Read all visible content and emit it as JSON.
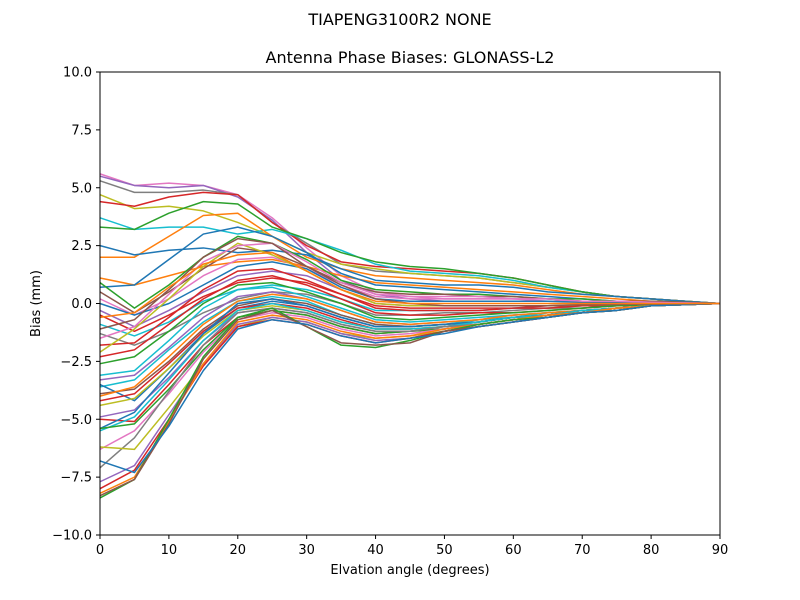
{
  "chart_data": {
    "type": "line",
    "suptitle": "TIAPENG3100R2   NONE",
    "title": "Antenna Phase Biases: GLONASS-L2",
    "xlabel": "Elvation angle (degrees)",
    "ylabel": "Bias (mm)",
    "xlim": [
      0,
      90
    ],
    "ylim": [
      -10,
      10
    ],
    "xticks": [
      0,
      10,
      20,
      30,
      40,
      50,
      60,
      70,
      80,
      90
    ],
    "yticks": [
      -10.0,
      -7.5,
      -5.0,
      -2.5,
      0.0,
      2.5,
      5.0,
      7.5,
      10.0
    ],
    "xtick_labels": [
      "0",
      "10",
      "20",
      "30",
      "40",
      "50",
      "60",
      "70",
      "80",
      "90"
    ],
    "ytick_labels": [
      "−10.0",
      "−7.5",
      "−5.0",
      "−2.5",
      "0.0",
      "2.5",
      "5.0",
      "7.5",
      "10.0"
    ],
    "grid": false,
    "legend": "none",
    "x": [
      0,
      5,
      10,
      15,
      20,
      25,
      30,
      35,
      40,
      45,
      50,
      55,
      60,
      65,
      70,
      75,
      80,
      85,
      90
    ],
    "series": [
      {
        "color": "#e377c2",
        "values": [
          5.6,
          5.1,
          5.2,
          5.1,
          4.7,
          3.7,
          2.4,
          1.2,
          0.5,
          0.3,
          0.2,
          0.2,
          0.2,
          0.2,
          0.1,
          0.1,
          0.1,
          0.05,
          0.0
        ]
      },
      {
        "color": "#9467bd",
        "values": [
          5.5,
          5.1,
          5.0,
          5.1,
          4.6,
          3.6,
          2.2,
          1.0,
          0.4,
          0.2,
          0.1,
          0.1,
          0.1,
          0.1,
          0.1,
          0.1,
          0.05,
          0.02,
          0.0
        ]
      },
      {
        "color": "#7f7f7f",
        "values": [
          5.3,
          4.8,
          4.8,
          4.9,
          4.7,
          3.5,
          2.6,
          1.7,
          1.4,
          1.3,
          1.2,
          1.1,
          0.9,
          0.7,
          0.5,
          0.3,
          0.2,
          0.1,
          0.0
        ]
      },
      {
        "color": "#bcbd22",
        "values": [
          4.7,
          4.1,
          4.2,
          4.0,
          3.5,
          2.9,
          2.2,
          1.7,
          1.5,
          1.3,
          1.2,
          1.1,
          0.9,
          0.7,
          0.5,
          0.3,
          0.2,
          0.1,
          0.0
        ]
      },
      {
        "color": "#d62728",
        "values": [
          4.4,
          4.2,
          4.6,
          4.8,
          4.7,
          3.5,
          2.5,
          1.8,
          1.6,
          1.5,
          1.4,
          1.3,
          1.1,
          0.8,
          0.5,
          0.3,
          0.2,
          0.1,
          0.0
        ]
      },
      {
        "color": "#17becf",
        "values": [
          3.7,
          3.2,
          3.3,
          3.3,
          3.0,
          3.2,
          2.8,
          2.3,
          1.7,
          1.4,
          1.3,
          1.2,
          1.0,
          0.7,
          0.5,
          0.3,
          0.2,
          0.1,
          0.0
        ]
      },
      {
        "color": "#2ca02c",
        "values": [
          3.3,
          3.2,
          3.9,
          4.4,
          4.3,
          3.3,
          2.8,
          2.2,
          1.8,
          1.6,
          1.5,
          1.3,
          1.1,
          0.8,
          0.5,
          0.3,
          0.2,
          0.1,
          0.0
        ]
      },
      {
        "color": "#ff7f0e",
        "values": [
          2.0,
          2.0,
          2.9,
          3.8,
          3.9,
          2.9,
          2.0,
          1.5,
          1.2,
          1.1,
          1.0,
          0.9,
          0.8,
          0.6,
          0.4,
          0.3,
          0.2,
          0.1,
          0.0
        ]
      },
      {
        "color": "#1f77b4",
        "values": [
          2.5,
          2.1,
          2.3,
          2.4,
          2.2,
          2.3,
          2.1,
          1.5,
          1.0,
          0.9,
          0.8,
          0.8,
          0.7,
          0.5,
          0.4,
          0.3,
          0.2,
          0.1,
          0.0
        ]
      },
      {
        "color": "#ff7f0e",
        "values": [
          1.1,
          0.8,
          1.2,
          1.6,
          1.8,
          1.9,
          1.6,
          1.2,
          0.9,
          0.8,
          0.7,
          0.6,
          0.5,
          0.4,
          0.3,
          0.2,
          0.1,
          0.05,
          0.0
        ]
      },
      {
        "color": "#1f77b4",
        "values": [
          0.7,
          0.8,
          1.9,
          3.0,
          3.3,
          2.9,
          2.2,
          1.3,
          0.8,
          0.7,
          0.6,
          0.5,
          0.4,
          0.3,
          0.2,
          0.1,
          0.1,
          0.05,
          0.0
        ]
      },
      {
        "color": "#2ca02c",
        "values": [
          0.9,
          -0.2,
          0.8,
          2.0,
          2.9,
          2.6,
          1.9,
          1.0,
          0.6,
          0.5,
          0.4,
          0.4,
          0.3,
          0.2,
          0.2,
          0.1,
          0.1,
          0.05,
          0.0
        ]
      },
      {
        "color": "#8c564b",
        "values": [
          0.5,
          -0.4,
          0.5,
          1.5,
          2.4,
          2.2,
          1.6,
          0.9,
          0.5,
          0.4,
          0.4,
          0.3,
          0.3,
          0.2,
          0.1,
          0.1,
          0.1,
          0.05,
          0.0
        ]
      },
      {
        "color": "#e377c2",
        "values": [
          0.2,
          -0.5,
          0.2,
          1.2,
          1.9,
          2.0,
          1.5,
          0.8,
          0.3,
          0.2,
          0.2,
          0.2,
          0.2,
          0.1,
          0.1,
          0.1,
          0.05,
          0.02,
          0.0
        ]
      },
      {
        "color": "#1f77b4",
        "values": [
          0.0,
          -0.5,
          0.0,
          0.8,
          1.6,
          1.8,
          1.5,
          0.7,
          0.2,
          0.1,
          0.1,
          0.1,
          0.1,
          0.1,
          0.05,
          0.05,
          0.02,
          0.01,
          0.0
        ]
      },
      {
        "color": "#9467bd",
        "values": [
          -0.3,
          -1.0,
          -0.3,
          0.5,
          1.2,
          1.4,
          1.2,
          0.6,
          0.0,
          -0.1,
          -0.1,
          -0.1,
          -0.1,
          -0.1,
          -0.05,
          -0.05,
          -0.02,
          -0.01,
          0.0
        ]
      },
      {
        "color": "#d62728",
        "values": [
          -0.5,
          -1.2,
          -0.5,
          0.3,
          0.9,
          1.1,
          0.9,
          0.4,
          -0.1,
          -0.2,
          -0.2,
          -0.2,
          -0.2,
          -0.1,
          -0.1,
          -0.05,
          -0.02,
          -0.01,
          0.0
        ]
      },
      {
        "color": "#17becf",
        "values": [
          -0.9,
          -1.4,
          -0.8,
          0.1,
          0.6,
          0.8,
          0.6,
          0.2,
          -0.3,
          -0.3,
          -0.3,
          -0.3,
          -0.2,
          -0.2,
          -0.1,
          -0.1,
          -0.05,
          -0.02,
          0.0
        ]
      },
      {
        "color": "#7f7f7f",
        "values": [
          -1.3,
          -1.8,
          -1.2,
          -0.4,
          0.2,
          0.5,
          0.4,
          0.0,
          -0.5,
          -0.5,
          -0.4,
          -0.4,
          -0.3,
          -0.2,
          -0.2,
          -0.1,
          -0.05,
          -0.02,
          0.0
        ]
      },
      {
        "color": "#d62728",
        "values": [
          -1.8,
          -1.7,
          -0.6,
          0.6,
          1.4,
          1.5,
          1.0,
          0.4,
          -0.2,
          -0.3,
          -0.3,
          -0.3,
          -0.2,
          -0.2,
          -0.1,
          -0.1,
          -0.05,
          -0.02,
          0.0
        ]
      },
      {
        "color": "#bcbd22",
        "values": [
          -2.1,
          -1.1,
          0.2,
          1.6,
          2.6,
          2.1,
          1.4,
          0.6,
          0.0,
          -0.1,
          -0.1,
          -0.1,
          -0.1,
          -0.1,
          -0.05,
          -0.05,
          -0.02,
          -0.01,
          0.0
        ]
      },
      {
        "color": "#d62728",
        "values": [
          -2.3,
          -2.0,
          -0.9,
          0.2,
          1.0,
          1.2,
          0.8,
          0.2,
          -0.4,
          -0.5,
          -0.5,
          -0.4,
          -0.4,
          -0.3,
          -0.2,
          -0.1,
          -0.05,
          -0.02,
          0.0
        ]
      },
      {
        "color": "#2ca02c",
        "values": [
          -2.6,
          -2.3,
          -1.2,
          0.0,
          0.8,
          0.9,
          0.5,
          0.0,
          -0.6,
          -0.7,
          -0.6,
          -0.5,
          -0.4,
          -0.3,
          -0.2,
          -0.1,
          -0.05,
          -0.02,
          0.0
        ]
      },
      {
        "color": "#17becf",
        "values": [
          -3.1,
          -2.9,
          -1.6,
          -0.2,
          0.6,
          0.7,
          0.3,
          -0.2,
          -0.7,
          -0.8,
          -0.7,
          -0.6,
          -0.5,
          -0.4,
          -0.3,
          -0.2,
          -0.1,
          -0.05,
          0.0
        ]
      },
      {
        "color": "#9467bd",
        "values": [
          -3.3,
          -3.1,
          -1.9,
          -0.6,
          0.3,
          0.5,
          0.2,
          -0.3,
          -0.8,
          -0.9,
          -0.8,
          -0.7,
          -0.5,
          -0.4,
          -0.3,
          -0.2,
          -0.1,
          -0.05,
          0.0
        ]
      },
      {
        "color": "#17becf",
        "values": [
          -3.6,
          -3.3,
          -2.0,
          -0.8,
          0.1,
          0.3,
          0.1,
          -0.5,
          -0.9,
          -1.0,
          -0.9,
          -0.7,
          -0.6,
          -0.4,
          -0.3,
          -0.2,
          -0.1,
          -0.05,
          0.0
        ]
      },
      {
        "color": "#1f77b4",
        "values": [
          -3.5,
          -4.2,
          -2.8,
          -1.3,
          -0.2,
          0.1,
          -0.1,
          -0.6,
          -1.0,
          -1.0,
          -0.9,
          -0.8,
          -0.6,
          -0.5,
          -0.3,
          -0.2,
          -0.1,
          -0.05,
          0.0
        ]
      },
      {
        "color": "#8c564b",
        "values": [
          -3.9,
          -3.7,
          -2.5,
          -1.1,
          -0.1,
          0.2,
          0.0,
          -0.5,
          -0.9,
          -1.0,
          -0.9,
          -0.8,
          -0.6,
          -0.5,
          -0.3,
          -0.2,
          -0.1,
          -0.05,
          0.0
        ]
      },
      {
        "color": "#ff7f0e",
        "values": [
          -4.0,
          -3.6,
          -2.3,
          -0.9,
          0.1,
          0.4,
          0.2,
          -0.3,
          -0.8,
          -0.9,
          -0.8,
          -0.7,
          -0.5,
          -0.4,
          -0.3,
          -0.2,
          -0.1,
          -0.05,
          0.0
        ]
      },
      {
        "color": "#d62728",
        "values": [
          -4.2,
          -3.9,
          -2.6,
          -1.2,
          -0.2,
          0.0,
          -0.2,
          -0.7,
          -1.1,
          -1.1,
          -1.0,
          -0.8,
          -0.6,
          -0.5,
          -0.3,
          -0.2,
          -0.1,
          -0.05,
          0.0
        ]
      },
      {
        "color": "#bcbd22",
        "values": [
          -4.4,
          -4.1,
          -2.8,
          -1.4,
          -0.3,
          -0.1,
          -0.3,
          -0.8,
          -1.1,
          -1.1,
          -1.0,
          -0.9,
          -0.7,
          -0.5,
          -0.4,
          -0.2,
          -0.1,
          -0.05,
          0.0
        ]
      },
      {
        "color": "#9467bd",
        "values": [
          -4.9,
          -4.6,
          -3.2,
          -1.6,
          -0.4,
          -0.2,
          -0.4,
          -0.9,
          -1.2,
          -1.2,
          -1.0,
          -0.9,
          -0.7,
          -0.5,
          -0.4,
          -0.2,
          -0.1,
          -0.05,
          0.0
        ]
      },
      {
        "color": "#d62728",
        "values": [
          -5.0,
          -5.1,
          -3.5,
          -1.8,
          -0.6,
          -0.3,
          -0.5,
          -1.0,
          -1.3,
          -1.2,
          -1.1,
          -0.9,
          -0.7,
          -0.5,
          -0.4,
          -0.2,
          -0.1,
          -0.05,
          0.0
        ]
      },
      {
        "color": "#1f77b4",
        "values": [
          -5.4,
          -4.7,
          -3.0,
          -1.3,
          0.0,
          0.2,
          -0.1,
          -0.6,
          -1.0,
          -1.0,
          -0.9,
          -0.8,
          -0.6,
          -0.5,
          -0.3,
          -0.2,
          -0.1,
          -0.05,
          0.0
        ]
      },
      {
        "color": "#17becf",
        "values": [
          -5.5,
          -4.9,
          -3.3,
          -1.6,
          -0.3,
          0.0,
          -0.3,
          -0.8,
          -1.1,
          -1.1,
          -1.0,
          -0.8,
          -0.6,
          -0.5,
          -0.3,
          -0.2,
          -0.1,
          -0.05,
          0.0
        ]
      },
      {
        "color": "#2ca02c",
        "values": [
          -5.4,
          -5.2,
          -3.7,
          -2.0,
          -0.6,
          -0.3,
          -0.5,
          -1.0,
          -1.3,
          -1.2,
          -1.1,
          -0.9,
          -0.7,
          -0.5,
          -0.4,
          -0.2,
          -0.1,
          -0.05,
          0.0
        ]
      },
      {
        "color": "#e377c2",
        "values": [
          -6.3,
          -5.5,
          -3.9,
          -2.1,
          -0.7,
          -0.4,
          -0.6,
          -1.1,
          -1.4,
          -1.3,
          -1.1,
          -0.9,
          -0.7,
          -0.6,
          -0.4,
          -0.2,
          -0.1,
          -0.05,
          0.0
        ]
      },
      {
        "color": "#7f7f7f",
        "values": [
          -7.1,
          -5.8,
          -3.8,
          -1.8,
          -0.4,
          -0.2,
          -0.4,
          -0.9,
          -1.2,
          -1.2,
          -1.0,
          -0.9,
          -0.7,
          -0.5,
          -0.4,
          -0.2,
          -0.1,
          -0.05,
          0.0
        ]
      },
      {
        "color": "#bcbd22",
        "values": [
          -6.2,
          -6.3,
          -4.5,
          -2.6,
          -1.0,
          -0.6,
          -0.8,
          -1.3,
          -1.5,
          -1.4,
          -1.2,
          -1.0,
          -0.8,
          -0.6,
          -0.4,
          -0.3,
          -0.1,
          -0.05,
          0.0
        ]
      },
      {
        "color": "#9467bd",
        "values": [
          -7.7,
          -7.0,
          -4.8,
          -2.6,
          -0.9,
          -0.6,
          -0.8,
          -1.3,
          -1.6,
          -1.5,
          -1.2,
          -1.0,
          -0.8,
          -0.6,
          -0.4,
          -0.3,
          -0.1,
          -0.05,
          0.0
        ]
      },
      {
        "color": "#d62728",
        "values": [
          -8.0,
          -7.2,
          -5.0,
          -2.7,
          -1.0,
          -0.7,
          -0.9,
          -1.4,
          -1.7,
          -1.5,
          -1.2,
          -1.0,
          -0.8,
          -0.6,
          -0.4,
          -0.3,
          -0.1,
          -0.05,
          0.0
        ]
      },
      {
        "color": "#ff7f0e",
        "values": [
          -8.2,
          -7.5,
          -5.1,
          -2.6,
          -0.8,
          -0.5,
          -0.7,
          -1.2,
          -1.5,
          -1.4,
          -1.1,
          -0.9,
          -0.7,
          -0.5,
          -0.4,
          -0.2,
          -0.1,
          -0.05,
          0.0
        ]
      },
      {
        "color": "#2ca02c",
        "values": [
          -8.4,
          -7.6,
          -5.0,
          -2.3,
          -0.6,
          -0.2,
          -1.0,
          -1.8,
          -1.9,
          -1.6,
          -1.2,
          -0.9,
          -0.7,
          -0.6,
          -0.4,
          -0.3,
          -0.1,
          -0.05,
          0.0
        ]
      },
      {
        "color": "#8c564b",
        "values": [
          -8.3,
          -7.6,
          -5.2,
          -2.4,
          -0.7,
          -0.3,
          -1.0,
          -1.7,
          -1.8,
          -1.7,
          -1.2,
          -1.0,
          -0.8,
          -0.6,
          -0.4,
          -0.3,
          -0.1,
          -0.05,
          0.0
        ]
      },
      {
        "color": "#1f77b4",
        "values": [
          -6.8,
          -7.3,
          -5.3,
          -2.9,
          -1.1,
          -0.7,
          -0.9,
          -1.4,
          -1.7,
          -1.5,
          -1.3,
          -1.0,
          -0.8,
          -0.6,
          -0.4,
          -0.3,
          -0.1,
          -0.05,
          0.0
        ]
      },
      {
        "color": "#e377c2",
        "values": [
          -1.5,
          -1.0,
          0.4,
          1.8,
          2.5,
          2.6,
          1.8,
          0.9,
          0.4,
          0.3,
          0.3,
          0.3,
          0.2,
          0.2,
          0.1,
          0.1,
          0.05,
          0.02,
          0.0
        ]
      },
      {
        "color": "#8c564b",
        "values": [
          -1.1,
          -0.7,
          0.6,
          2.0,
          2.8,
          2.6,
          1.6,
          0.8,
          0.2,
          0.0,
          -0.1,
          -0.1,
          -0.1,
          -0.1,
          -0.05,
          -0.05,
          -0.02,
          -0.01,
          0.0
        ]
      },
      {
        "color": "#ff7f0e",
        "values": [
          -0.6,
          -0.4,
          0.7,
          1.7,
          2.1,
          2.2,
          1.4,
          0.6,
          0.1,
          0.0,
          0.0,
          0.0,
          0.0,
          0.0,
          0.0,
          0.0,
          0.0,
          0.0,
          0.0
        ]
      }
    ]
  }
}
